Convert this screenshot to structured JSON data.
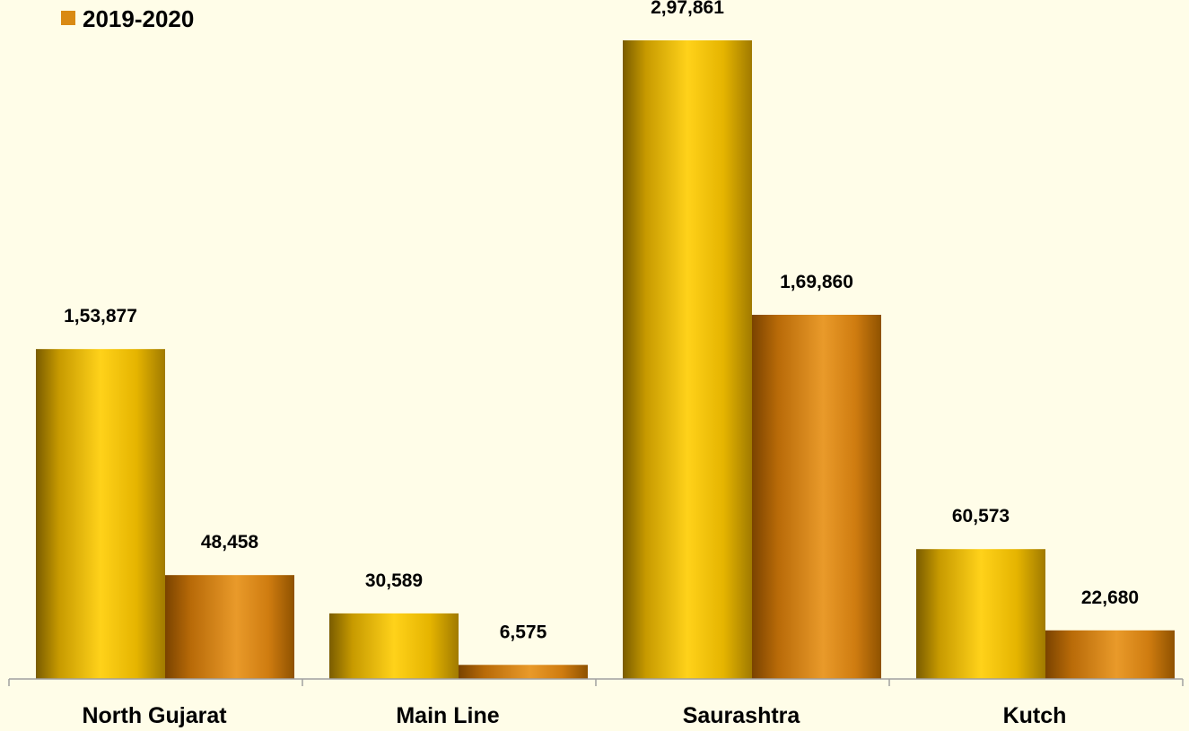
{
  "chart_data": {
    "type": "bar",
    "categories": [
      "North Gujarat",
      "Main Line",
      "Saurashtra",
      "Kutch"
    ],
    "series": [
      {
        "values": [
          153877,
          30589,
          297861,
          60573
        ],
        "labels": [
          "1,53,877",
          "30,589",
          "2,97,861",
          "60,573"
        ],
        "color": "#f2c200"
      },
      {
        "name": "2019-2020",
        "values": [
          48458,
          6575,
          169860,
          22680
        ],
        "labels": [
          "48,458",
          "6,575",
          "1,69,860",
          "22,680"
        ],
        "color": "#d98a14"
      }
    ],
    "legend": {
      "position": "top-left",
      "items": [
        "2019-2020"
      ]
    },
    "ylim": [
      0,
      297861
    ],
    "grid": false,
    "background": "#fffde8"
  }
}
